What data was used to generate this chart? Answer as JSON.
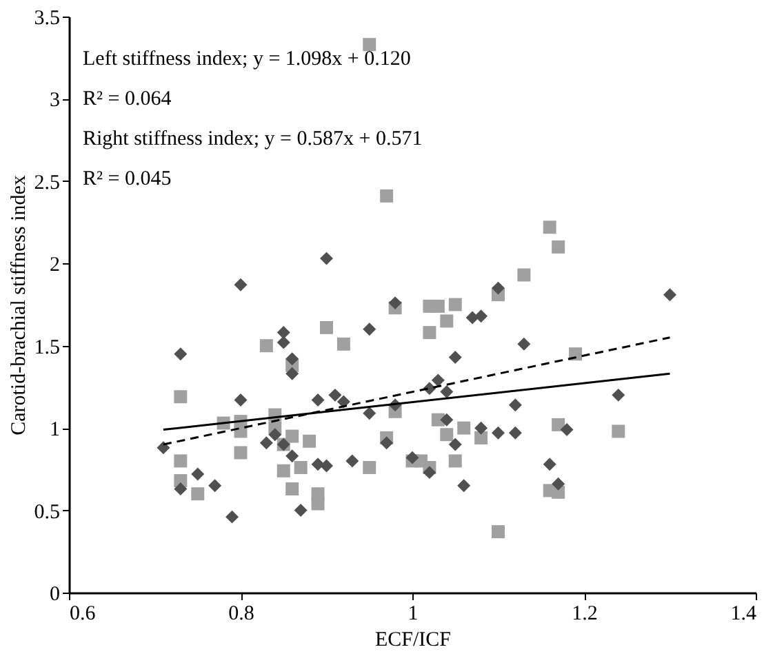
{
  "chart_data": {
    "type": "scatter",
    "xlabel": "ECF/ICF",
    "ylabel": "Carotid-brachial stiffness index",
    "xlim": [
      0.6,
      1.4
    ],
    "xticks": [
      0.6,
      0.8,
      1,
      1.2,
      1.4
    ],
    "ylim": [
      0,
      3.5
    ],
    "yticks": [
      0,
      0.5,
      1,
      1.5,
      2,
      2.5,
      3,
      3.5
    ],
    "grid": false,
    "annotations": [
      "Left stiffness index; y = 1.098x + 0.120",
      "R² = 0.064",
      "Right stiffness index; y = 0.587x + 0.571",
      "R² = 0.045"
    ],
    "series": [
      {
        "marker": "square",
        "color": "#a0a0a0",
        "x": [
          0.95,
          0.97,
          1.16,
          1.17,
          1.13,
          1.1,
          1.05,
          1.03,
          1.02,
          1.04,
          1.02,
          0.98,
          0.9,
          0.92,
          0.83,
          0.86,
          0.73,
          0.84,
          0.78,
          0.8,
          0.8,
          0.8,
          0.73,
          0.73,
          0.75,
          0.85,
          0.86,
          0.84,
          0.88,
          0.87,
          0.85,
          0.86,
          0.89,
          0.89,
          0.95,
          0.98,
          0.97,
          1.0,
          1.01,
          1.02,
          1.03,
          1.06,
          1.04,
          1.08,
          1.05,
          1.1,
          1.16,
          1.17,
          1.19,
          1.24,
          1.17
        ],
        "values": [
          3.33,
          2.41,
          2.22,
          2.1,
          1.93,
          1.81,
          1.75,
          1.74,
          1.74,
          1.65,
          1.58,
          1.73,
          1.61,
          1.51,
          1.5,
          1.38,
          1.19,
          1.08,
          1.03,
          1.04,
          0.98,
          0.85,
          0.8,
          0.68,
          0.6,
          0.9,
          0.95,
          1.0,
          0.92,
          0.76,
          0.74,
          0.63,
          0.6,
          0.54,
          0.76,
          1.1,
          0.94,
          0.8,
          0.8,
          0.76,
          1.05,
          1.0,
          0.96,
          0.94,
          0.8,
          0.37,
          0.62,
          1.02,
          1.45,
          0.98,
          0.61
        ]
      },
      {
        "marker": "diamond",
        "color": "#505050",
        "x": [
          0.71,
          0.73,
          0.73,
          0.75,
          0.77,
          0.79,
          0.8,
          0.8,
          0.83,
          0.84,
          0.85,
          0.85,
          0.86,
          0.86,
          0.85,
          0.86,
          0.87,
          0.89,
          0.89,
          0.9,
          0.9,
          0.91,
          0.92,
          0.95,
          0.95,
          0.93,
          0.97,
          0.98,
          0.98,
          1.0,
          1.02,
          1.02,
          1.03,
          1.04,
          1.05,
          1.04,
          1.05,
          1.06,
          1.07,
          1.08,
          1.08,
          1.1,
          1.1,
          1.12,
          1.12,
          1.13,
          1.16,
          1.17,
          1.18,
          1.24,
          1.3
        ],
        "values": [
          0.88,
          1.45,
          0.63,
          0.72,
          0.65,
          0.46,
          1.87,
          1.17,
          0.91,
          0.96,
          1.58,
          1.52,
          1.42,
          1.33,
          0.9,
          0.83,
          0.5,
          1.17,
          0.78,
          0.77,
          2.03,
          1.2,
          1.16,
          1.6,
          1.09,
          0.8,
          0.91,
          1.76,
          1.14,
          0.82,
          0.73,
          1.24,
          1.29,
          1.22,
          1.43,
          1.05,
          0.9,
          0.65,
          1.67,
          1.68,
          1.0,
          0.97,
          1.85,
          1.14,
          0.97,
          1.51,
          0.78,
          0.66,
          0.99,
          1.2,
          1.81
        ]
      },
      {
        "type": "line",
        "line_style": "dashed",
        "marker": "none",
        "color": "#000000",
        "x": [
          0.71,
          1.3
        ],
        "values": [
          0.9,
          1.55
        ]
      },
      {
        "type": "line",
        "line_style": "solid",
        "marker": "none",
        "color": "#000000",
        "x": [
          0.71,
          1.3
        ],
        "values": [
          0.99,
          1.33
        ]
      }
    ]
  }
}
